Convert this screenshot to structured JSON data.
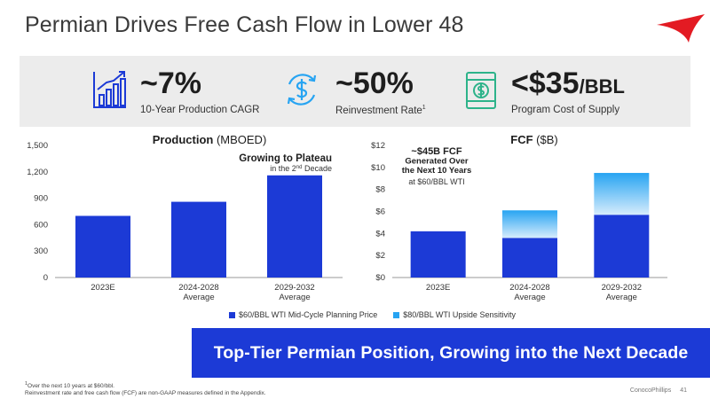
{
  "title": "Permian Drives Free Cash Flow in Lower 48",
  "metrics": [
    {
      "value": "~7%",
      "label": "10-Year Production CAGR",
      "icon": "bar-growth-icon"
    },
    {
      "value": "~50%",
      "label": "Reinvestment Rate",
      "label_sup": "1",
      "icon": "dollar-cycle-icon"
    },
    {
      "value": "<$35",
      "value_unit": "/BBL",
      "label": "Program Cost of Supply",
      "icon": "oil-barrel-icon"
    }
  ],
  "chart_data": [
    {
      "type": "bar",
      "title": "Production",
      "title_unit": "(MBOED)",
      "categories": [
        [
          "2023E"
        ],
        [
          "2024-2028",
          "Average"
        ],
        [
          "2029-2032",
          "Average"
        ]
      ],
      "series": [
        {
          "name": "$60/BBL WTI Mid-Cycle Planning Price",
          "values": [
            700,
            860,
            1160
          ]
        }
      ],
      "ylim": [
        0,
        1500
      ],
      "yticks": [
        "0",
        "300",
        "600",
        "900",
        "1,200",
        "1,500"
      ],
      "annotation_title": "Growing to Plateau",
      "annotation_sub_pre": "in the 2",
      "annotation_sub_sup": "nd",
      "annotation_sub_post": " Decade"
    },
    {
      "type": "bar",
      "stacked": true,
      "title": "FCF",
      "title_unit": "($B)",
      "categories": [
        [
          "2023E"
        ],
        [
          "2024-2028",
          "Average"
        ],
        [
          "2029-2032",
          "Average"
        ]
      ],
      "series": [
        {
          "name": "$60/BBL WTI Mid-Cycle Planning Price",
          "values": [
            4.2,
            3.6,
            5.7
          ]
        },
        {
          "name": "$80/BBL WTI Upside Sensitivity",
          "values": [
            0,
            2.5,
            3.8
          ]
        }
      ],
      "ylim": [
        0,
        12
      ],
      "yticks": [
        "$0",
        "$2",
        "$4",
        "$6",
        "$8",
        "$10",
        "$12"
      ],
      "annotation_lines": [
        "~$45B FCF",
        "Generated Over",
        "the Next 10 Years"
      ],
      "annotation_sub": "at $60/BBL WTI"
    }
  ],
  "legend": [
    {
      "label": "$60/BBL WTI Mid-Cycle Planning Price",
      "color": "#1c3ad6"
    },
    {
      "label": "$80/BBL WTI Upside Sensitivity",
      "color": "#27a4f2"
    }
  ],
  "colors": {
    "primary": "#1c3ad6",
    "upside_top": "#27a4f2",
    "upside_bottom": "#d6ecfc",
    "accent": "#e31b23"
  },
  "banner": "Top-Tier Permian Position, Growing into the Next Decade",
  "footnote_sup": "1",
  "footnote_line1": "Over the next 10 years at $60/bbl.",
  "footnote_line2": "Reinvestment rate and free cash flow (FCF) are non-GAAP measures defined in the Appendix.",
  "footer_company": "ConocoPhillips",
  "footer_page": "41"
}
